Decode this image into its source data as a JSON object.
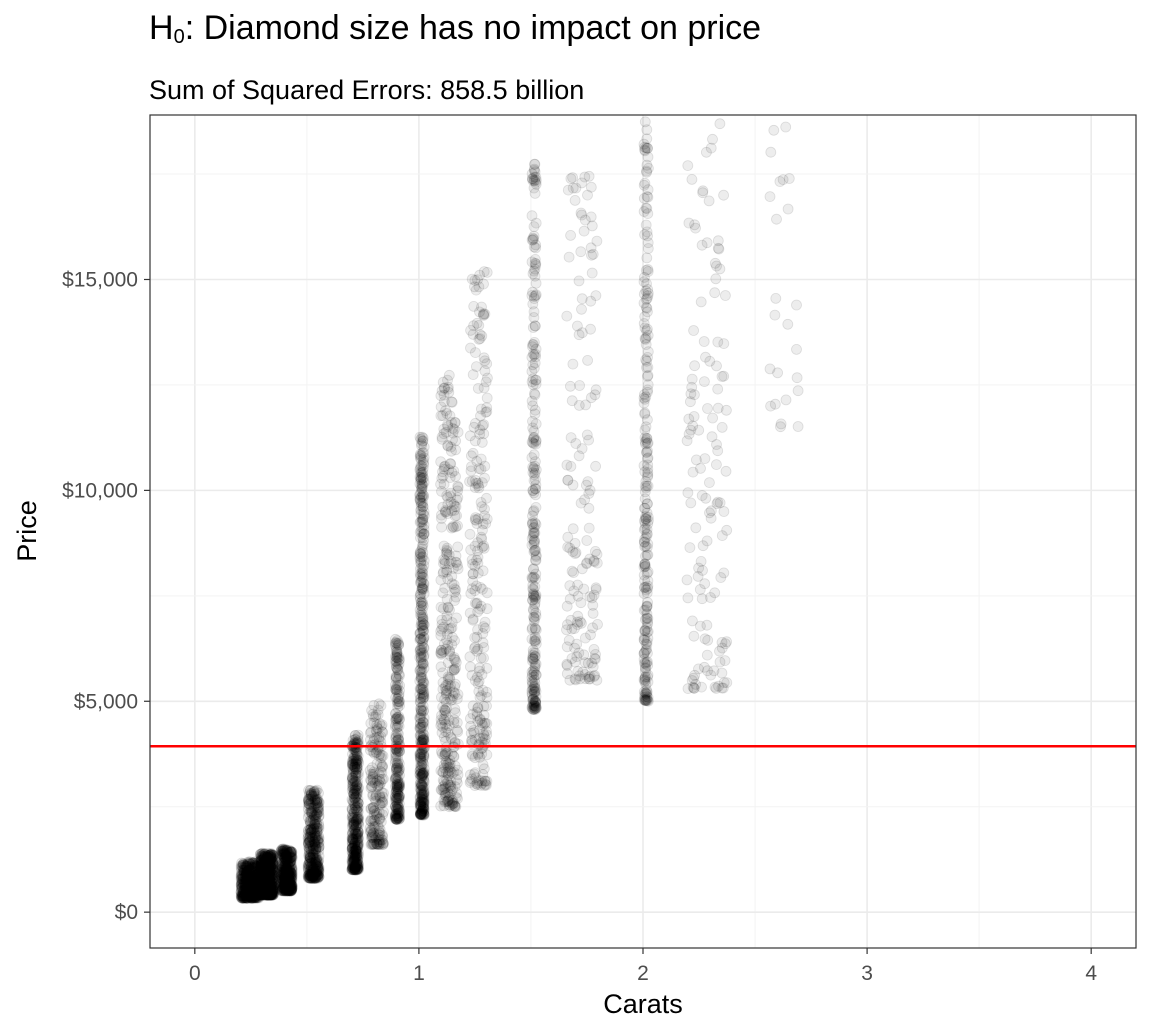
{
  "chart_data": {
    "type": "scatter",
    "title_main": "H",
    "title_sub": "0",
    "title_rest": ": Diamond size has no impact on price",
    "subtitle": "Sum of Squared Errors: 858.5 billion",
    "xlabel": "Carats",
    "ylabel": "Price",
    "xlim": [
      -0.2,
      4.2
    ],
    "ylim": [
      -850,
      18900
    ],
    "x_ticks": [
      0,
      1,
      2,
      3,
      4
    ],
    "x_tick_labels": [
      "0",
      "1",
      "2",
      "3",
      "4"
    ],
    "y_ticks": [
      0,
      5000,
      10000,
      15000
    ],
    "y_tick_labels": [
      "$0",
      "$5,000",
      "$10,000",
      "$15,000"
    ],
    "grid": true,
    "point_color": "#000000",
    "point_alpha": 0.07,
    "null_model_price": 3933,
    "line_color": "#ff0000",
    "clusters": [
      {
        "carat": 0.23,
        "spread": 0.08,
        "price_min": 330,
        "price_max": 1200,
        "count": 500
      },
      {
        "carat": 0.31,
        "spread": 0.06,
        "price_min": 400,
        "price_max": 1400,
        "count": 700
      },
      {
        "carat": 0.4,
        "spread": 0.05,
        "price_min": 500,
        "price_max": 1500,
        "count": 450
      },
      {
        "carat": 0.52,
        "spread": 0.05,
        "price_min": 800,
        "price_max": 2900,
        "count": 400
      },
      {
        "carat": 0.71,
        "spread": 0.03,
        "price_min": 1000,
        "price_max": 4200,
        "count": 420
      },
      {
        "carat": 0.8,
        "spread": 0.06,
        "price_min": 1600,
        "price_max": 5000,
        "count": 180
      },
      {
        "carat": 0.9,
        "spread": 0.02,
        "price_min": 2200,
        "price_max": 6500,
        "count": 250
      },
      {
        "carat": 1.01,
        "spread": 0.02,
        "price_min": 2300,
        "price_max": 11400,
        "count": 450
      },
      {
        "carat": 1.12,
        "spread": 0.08,
        "price_min": 2500,
        "price_max": 12800,
        "count": 330
      },
      {
        "carat": 1.25,
        "spread": 0.08,
        "price_min": 3000,
        "price_max": 15200,
        "count": 230
      },
      {
        "carat": 1.51,
        "spread": 0.02,
        "price_min": 4800,
        "price_max": 17800,
        "count": 260
      },
      {
        "carat": 1.7,
        "spread": 0.14,
        "price_min": 5500,
        "price_max": 17600,
        "count": 150
      },
      {
        "carat": 2.01,
        "spread": 0.02,
        "price_min": 5000,
        "price_max": 18800,
        "count": 230
      },
      {
        "carat": 2.25,
        "spread": 0.18,
        "price_min": 5300,
        "price_max": 18800,
        "count": 130
      },
      {
        "carat": 2.6,
        "spread": 0.15,
        "price_min": 11500,
        "price_max": 18800,
        "count": 24
      }
    ]
  }
}
